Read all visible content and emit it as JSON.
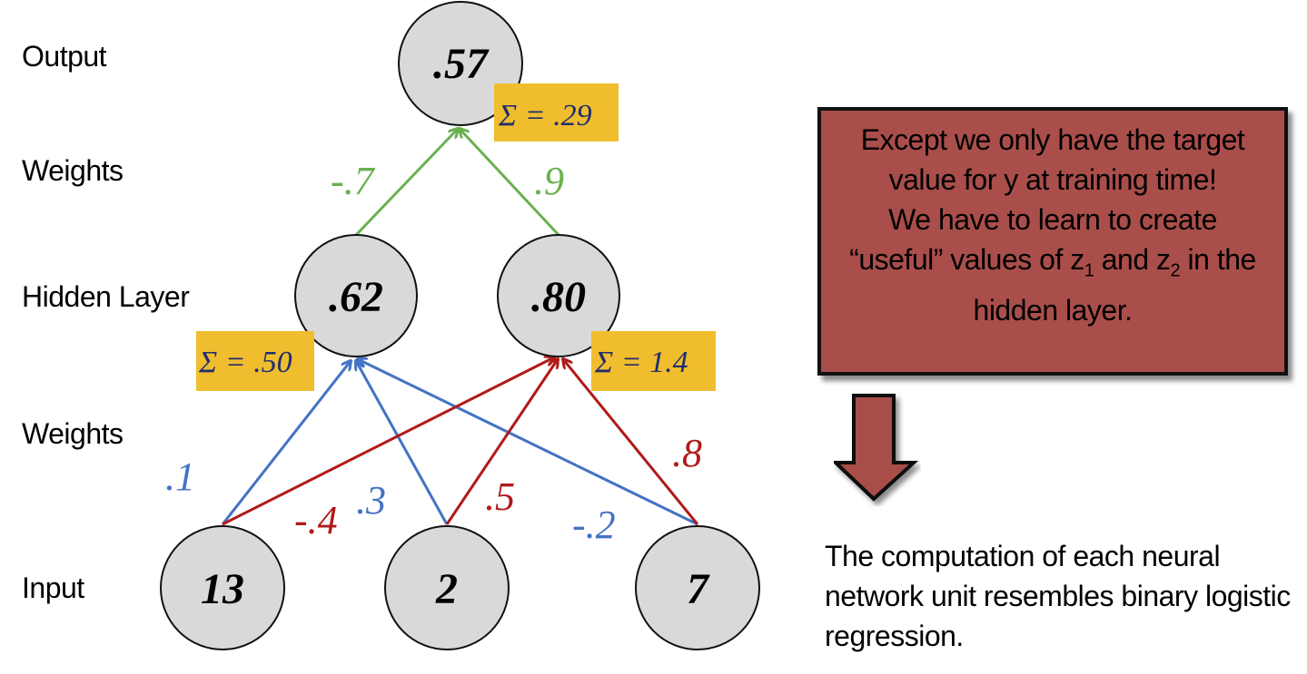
{
  "layer_labels": {
    "output": "Output",
    "weights_top": "Weights",
    "hidden": "Hidden Layer",
    "weights_bottom": "Weights",
    "input": "Input"
  },
  "nodes": {
    "output": ".57",
    "hidden": [
      ".62",
      ".80"
    ],
    "input": [
      "13",
      "2",
      "7"
    ]
  },
  "sums": {
    "output": "Σ = .29",
    "hidden1": "Σ = .50",
    "hidden2": "Σ = 1.4"
  },
  "weights": {
    "h1_out": "-.7",
    "h2_out": ".9",
    "x1_h1": ".1",
    "x1_h2": "-.4",
    "x2_h1": ".3",
    "x2_h2": ".5",
    "x3_h1": "-.2",
    "x3_h2": ".8"
  },
  "colors": {
    "green": "#6ab150",
    "blue": "#4472c4",
    "red": "#b01a1a",
    "sum_box": "#f0bd2e",
    "sum_text": "#1f2f6e",
    "node_fill": "#d9d9d9",
    "callout_fill": "#a94e4a"
  },
  "callout": {
    "line1": "Except we only have the target value for y at training time!",
    "line2_part1": "We have to learn to create “useful” values of z",
    "line2_sub1": "1",
    "line2_part2": " and z",
    "line2_sub2": "2",
    "line2_part3": " in the hidden layer."
  },
  "arrow_icon": "down-arrow-icon",
  "note": "The computation of each neural network unit resembles binary logistic regression."
}
